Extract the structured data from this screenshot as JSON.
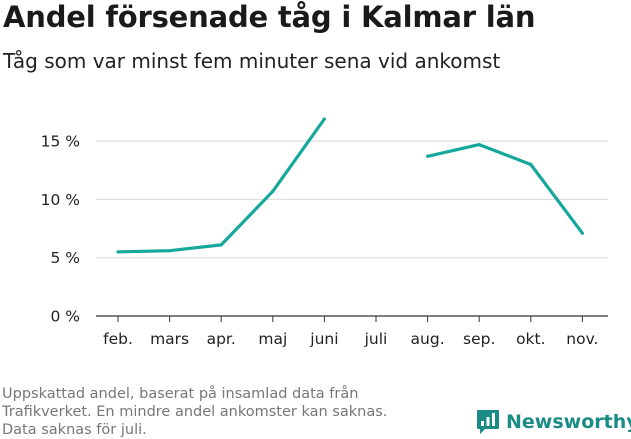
{
  "header": {
    "title": "Andel försenade tåg i Kalmar län",
    "subtitle": "Tåg som var minst fem minuter sena vid ankomst"
  },
  "footer": {
    "note_lines": [
      "Uppskattad andel, baserat på insamlad data från",
      "Trafikverket. En mindre andel ankomster kan saknas.",
      "Data saknas för juli."
    ],
    "brand": "Newsworthy"
  },
  "colors": {
    "line": "#16a89c",
    "grid": "#d9d9d9",
    "axis": "#333333",
    "brand": "#1a8c85"
  },
  "chart_data": {
    "type": "line",
    "categories": [
      "feb.",
      "mars",
      "apr.",
      "maj",
      "juni",
      "juli",
      "aug.",
      "sep.",
      "okt.",
      "nov."
    ],
    "values": [
      5.5,
      5.6,
      6.1,
      10.7,
      16.9,
      null,
      13.7,
      14.7,
      13.0,
      7.1
    ],
    "yticks": [
      0,
      5,
      10,
      15
    ],
    "ytick_labels": [
      "0 %",
      "5 %",
      "10 %",
      "15 %"
    ],
    "ylim": [
      0,
      17.5
    ],
    "grid": true,
    "title": "Andel försenade tåg i Kalmar län",
    "xlabel": "",
    "ylabel": ""
  }
}
